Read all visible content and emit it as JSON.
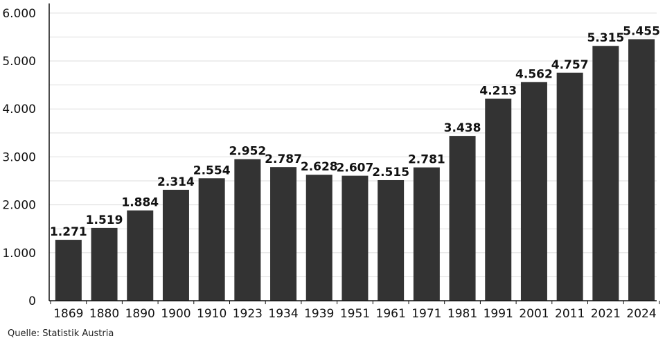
{
  "chart_data": {
    "type": "bar",
    "categories": [
      "1869",
      "1880",
      "1890",
      "1900",
      "1910",
      "1923",
      "1934",
      "1939",
      "1951",
      "1961",
      "1971",
      "1981",
      "1991",
      "2001",
      "2011",
      "2021",
      "2024"
    ],
    "values": [
      1271,
      1519,
      1884,
      2314,
      2554,
      2952,
      2787,
      2628,
      2607,
      2515,
      2781,
      3438,
      4213,
      4562,
      4757,
      5315,
      5455
    ],
    "value_labels": [
      "1.271",
      "1.519",
      "1.884",
      "2.314",
      "2.554",
      "2.952",
      "2.787",
      "2.628",
      "2.607",
      "2.515",
      "2.781",
      "3.438",
      "4.213",
      "4.562",
      "4.757",
      "5.315",
      "5.455"
    ],
    "yticks": [
      0,
      1000,
      2000,
      3000,
      4000,
      5000,
      6000
    ],
    "ytick_labels": [
      "0",
      "1.000",
      "2.000",
      "3.000",
      "4.000",
      "5.000",
      "6.000"
    ],
    "ylim": [
      0,
      6200
    ],
    "grid": true,
    "bar_color": "#333333",
    "grid_color": "#dddddd"
  },
  "source_note": "Quelle: Statistik Austria"
}
